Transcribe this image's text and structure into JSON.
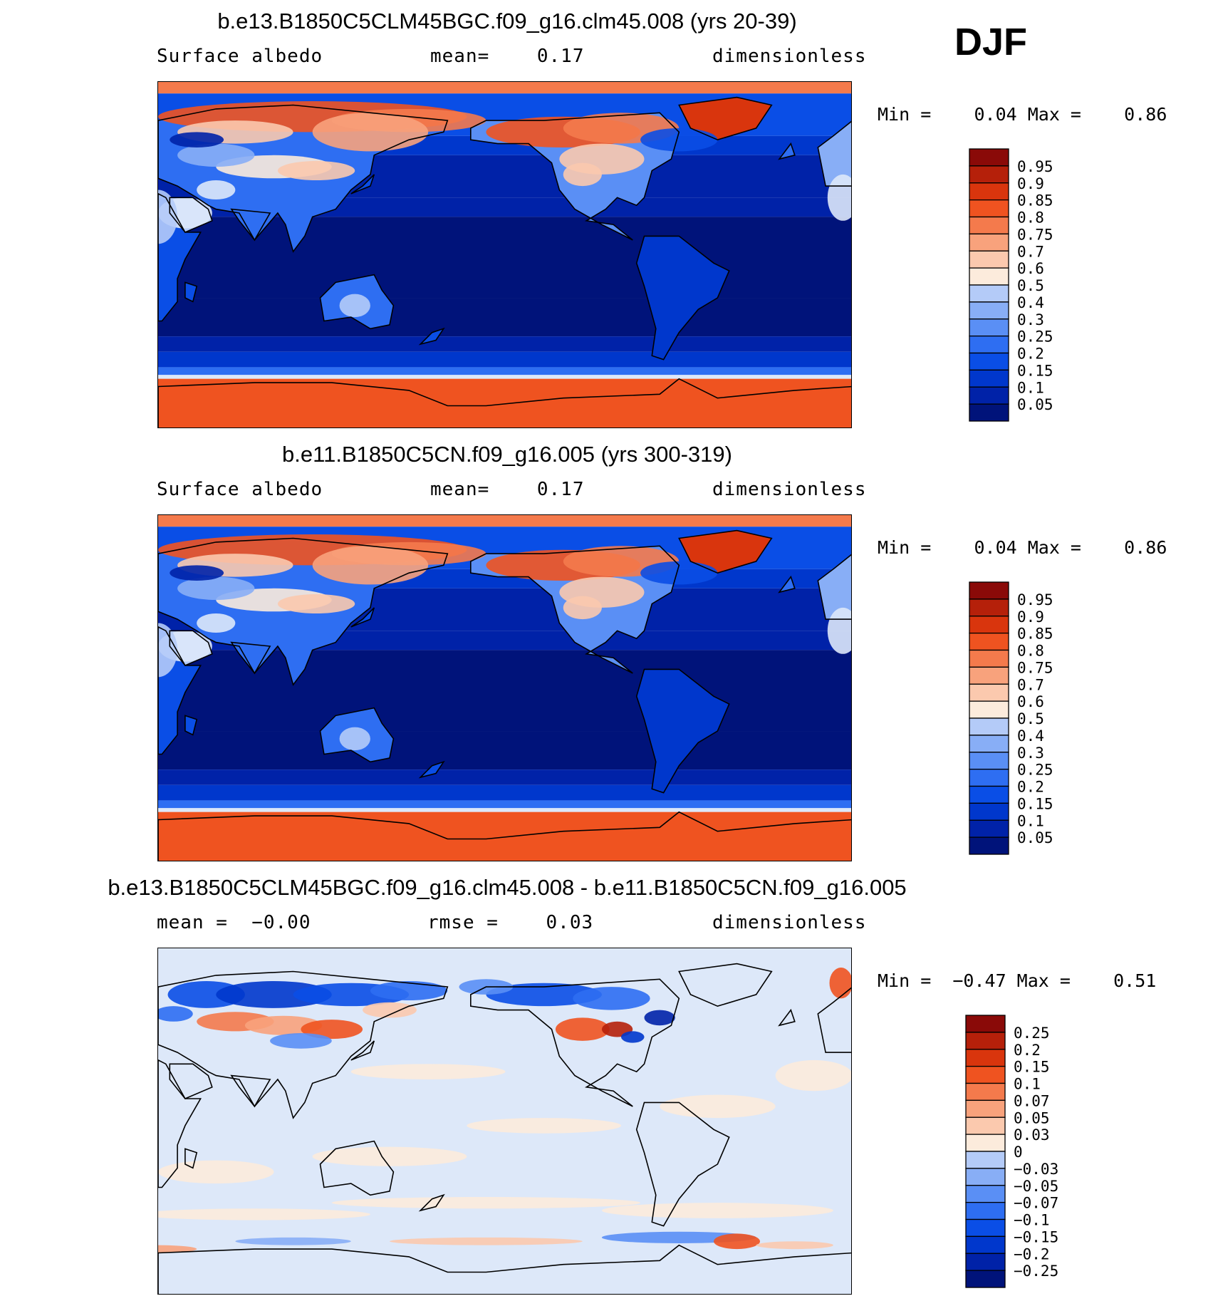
{
  "season": "DJF",
  "colors": {
    "abs_scale": [
      "#00137a",
      "#0022a8",
      "#0037cc",
      "#0a4ee6",
      "#2e6ef2",
      "#5a8ff5",
      "#88aef6",
      "#b4cbf8",
      "#dde8f9",
      "#fcebdc",
      "#fbc9ae",
      "#f8a27c",
      "#f47a4c",
      "#ef5320",
      "#d9350d",
      "#b5200a",
      "#8a0a08"
    ],
    "diff_scale": [
      "#00137a",
      "#0022a8",
      "#0037cc",
      "#0a4ee6",
      "#2e6ef2",
      "#5a8ff5",
      "#88aef6",
      "#b4cbf8",
      "#dde8f9",
      "#fcebdc",
      "#fbc9ae",
      "#f8a27c",
      "#f47a4c",
      "#ef5320",
      "#d9350d",
      "#b5200a",
      "#8a0a08"
    ],
    "land_outline": "#000000"
  },
  "panels": [
    {
      "title": "b.e13.B1850C5CLM45BGC.f09_g16.clm45.008 (yrs 20-39)",
      "sub_left": "Surface albedo",
      "sub_mid": "mean=    0.17",
      "sub_right": "dimensionless",
      "minmax": "Min =    0.04 Max =    0.86",
      "map": "field"
    },
    {
      "title": "b.e11.B1850C5CN.f09_g16.005 (yrs 300-319)",
      "sub_left": "Surface albedo",
      "sub_mid": "mean=    0.17",
      "sub_right": "dimensionless",
      "minmax": "Min =    0.04 Max =    0.86",
      "map": "field"
    },
    {
      "title": "b.e13.B1850C5CLM45BGC.f09_g16.clm45.008 - b.e11.B1850C5CN.f09_g16.005",
      "sub_left": "mean =  −0.00",
      "sub_mid": "rmse =    0.03",
      "sub_right": "dimensionless",
      "minmax": "Min =  −0.47 Max =    0.51",
      "map": "diff"
    }
  ],
  "chart_data": [
    {
      "type": "heatmap",
      "title": "b.e13.B1850C5CLM45BGC.f09_g16.clm45.008 (yrs 20-39)",
      "variable": "Surface albedo",
      "units": "dimensionless",
      "mean": 0.17,
      "min": 0.04,
      "max": 0.86,
      "colorbar_levels": [
        "0.95",
        "0.9",
        "0.85",
        "0.8",
        "0.75",
        "0.7",
        "0.6",
        "0.5",
        "0.4",
        "0.3",
        "0.25",
        "0.2",
        "0.15",
        "0.1",
        "0.05"
      ],
      "map_projection": "cylindrical equidistant, Pacific-centered"
    },
    {
      "type": "heatmap",
      "title": "b.e11.B1850C5CN.f09_g16.005 (yrs 300-319)",
      "variable": "Surface albedo",
      "units": "dimensionless",
      "mean": 0.17,
      "min": 0.04,
      "max": 0.86,
      "colorbar_levels": [
        "0.95",
        "0.9",
        "0.85",
        "0.8",
        "0.75",
        "0.7",
        "0.6",
        "0.5",
        "0.4",
        "0.3",
        "0.25",
        "0.2",
        "0.15",
        "0.1",
        "0.05"
      ],
      "map_projection": "cylindrical equidistant, Pacific-centered"
    },
    {
      "type": "heatmap",
      "title": "b.e13.B1850C5CLM45BGC.f09_g16.clm45.008 - b.e11.B1850C5CN.f09_g16.005",
      "units": "dimensionless",
      "mean": -0.0,
      "rmse": 0.03,
      "min": -0.47,
      "max": 0.51,
      "colorbar_levels": [
        "0.25",
        "0.2",
        "0.15",
        "0.1",
        "0.07",
        "0.05",
        "0.03",
        "0",
        "−0.03",
        "−0.05",
        "−0.07",
        "−0.1",
        "−0.15",
        "−0.2",
        "−0.25"
      ],
      "map_projection": "cylindrical equidistant, Pacific-centered"
    }
  ]
}
